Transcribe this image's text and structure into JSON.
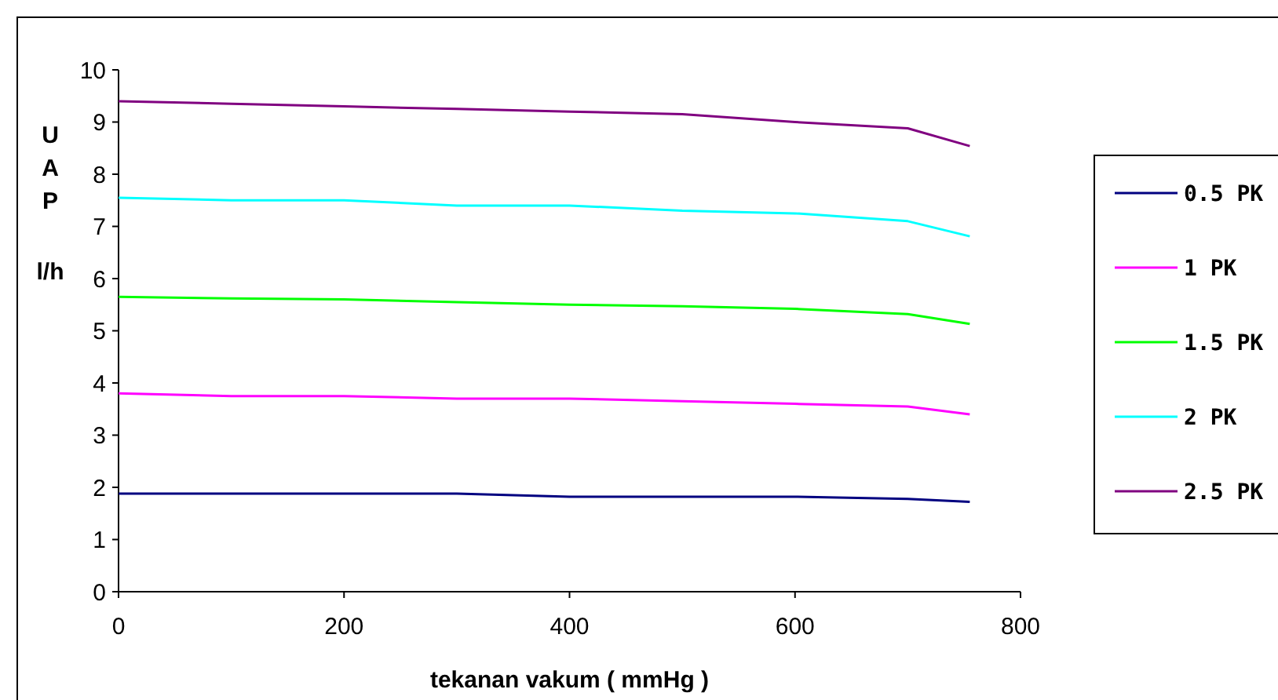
{
  "chart_data": {
    "type": "line",
    "xlabel": "tekanan vakum ( mmHg )",
    "ylabel": "UAP l/h",
    "x": [
      0,
      100,
      200,
      300,
      400,
      500,
      600,
      700,
      755
    ],
    "series": [
      {
        "name": "0.5 PK",
        "color": "#000080",
        "values": [
          1.88,
          1.88,
          1.88,
          1.88,
          1.82,
          1.82,
          1.82,
          1.78,
          1.72
        ]
      },
      {
        "name": "1 PK",
        "color": "#ff00ff",
        "values": [
          3.8,
          3.75,
          3.75,
          3.7,
          3.7,
          3.65,
          3.6,
          3.55,
          3.4
        ]
      },
      {
        "name": "1.5 PK",
        "color": "#00ff00",
        "values": [
          5.65,
          5.62,
          5.6,
          5.55,
          5.5,
          5.47,
          5.42,
          5.32,
          5.13
        ]
      },
      {
        "name": "2 PK",
        "color": "#00ffff",
        "values": [
          7.55,
          7.5,
          7.5,
          7.4,
          7.4,
          7.3,
          7.25,
          7.1,
          6.81
        ]
      },
      {
        "name": "2.5 PK",
        "color": "#800080",
        "values": [
          9.4,
          9.35,
          9.3,
          9.25,
          9.2,
          9.15,
          9.0,
          8.88,
          8.54
        ]
      }
    ],
    "xlim": [
      0,
      800
    ],
    "xticks": [
      0,
      200,
      400,
      600,
      800
    ],
    "ylim": [
      0,
      10
    ],
    "yticks": [
      0,
      1,
      2,
      3,
      4,
      5,
      6,
      7,
      8,
      9,
      10
    ],
    "grid": false,
    "legend": "right",
    "marker": "none",
    "line_style": "solid"
  }
}
